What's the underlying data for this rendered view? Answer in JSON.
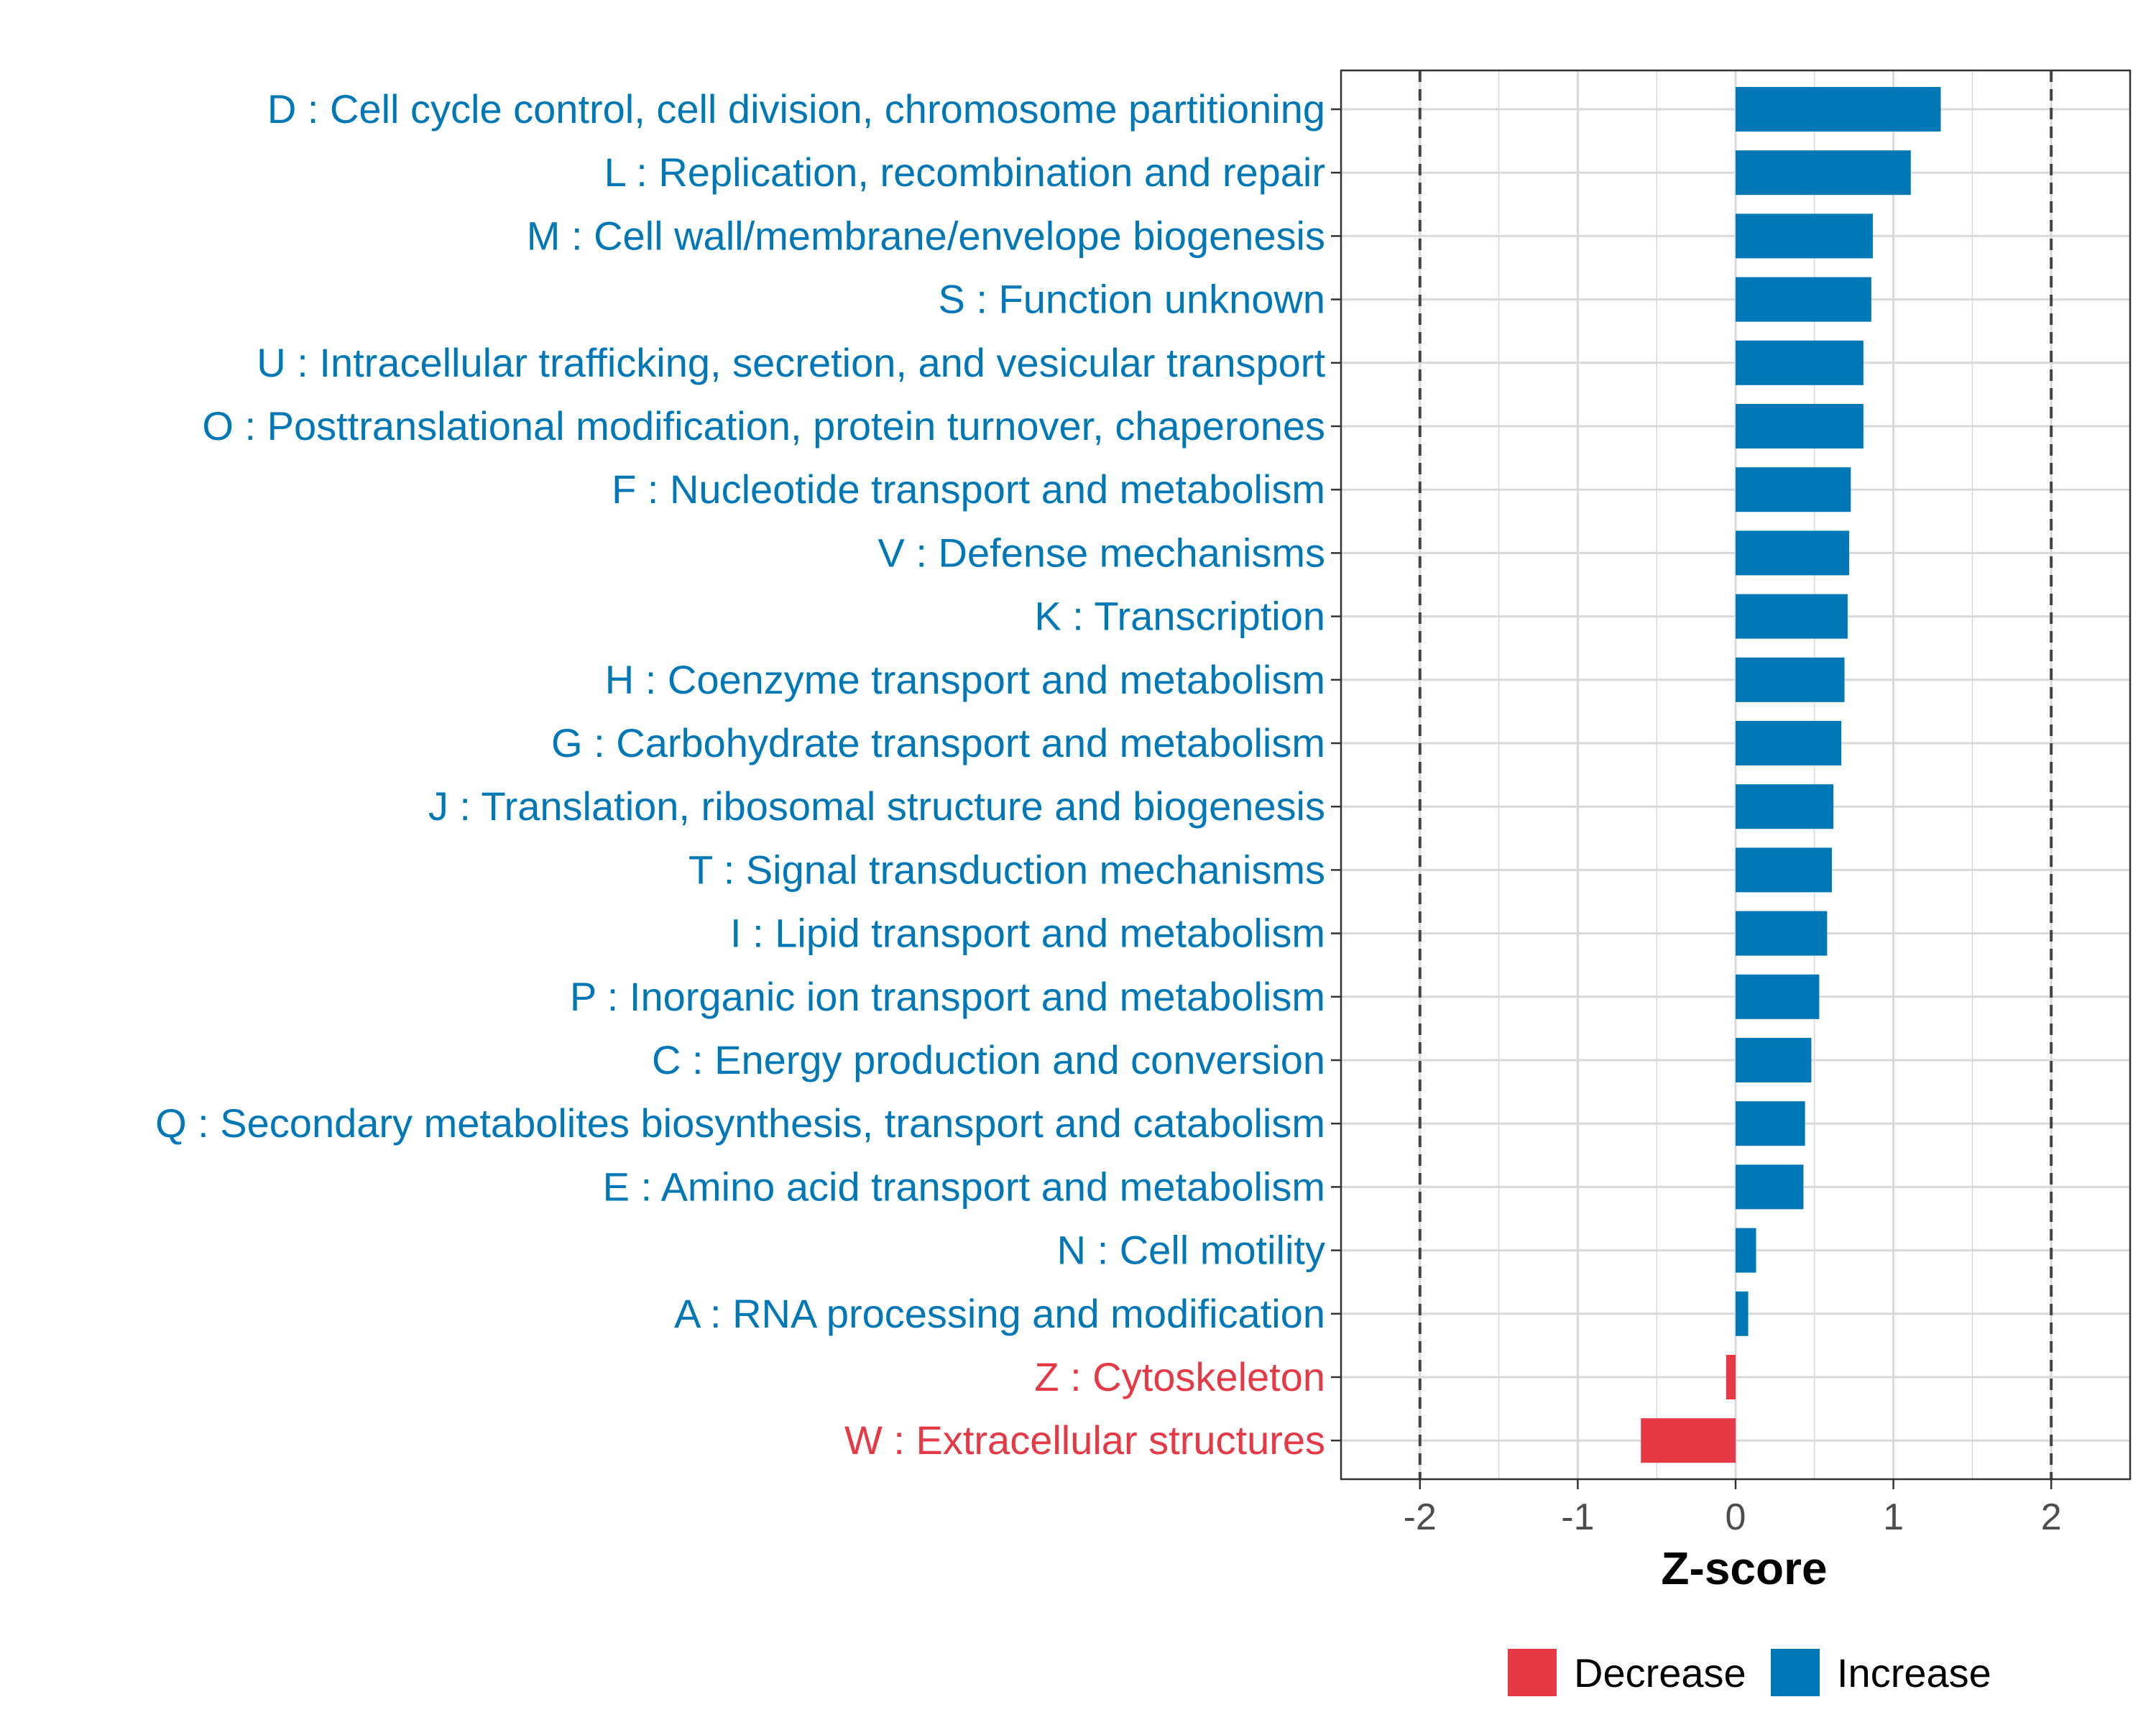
{
  "chart_data": {
    "type": "bar",
    "orientation": "horizontal",
    "xlabel": "Z-score",
    "xlim": [
      -2.5,
      2.5
    ],
    "xticks": [
      -2,
      -1,
      0,
      1,
      2
    ],
    "xtick_labels": [
      "-2",
      "-1",
      "0",
      "1",
      "2"
    ],
    "reference_lines": [
      -2,
      2
    ],
    "grid": true,
    "colors": {
      "increase": "#0077b6",
      "decrease": "#e63946",
      "reference": "#444444",
      "grid": "#d9d9d9",
      "frame": "#333333"
    },
    "categories": [
      "D : Cell cycle control, cell division, chromosome partitioning",
      "L : Replication, recombination and repair",
      "M : Cell wall/membrane/envelope biogenesis",
      "S : Function unknown",
      "U : Intracellular trafficking, secretion, and vesicular transport",
      "O : Posttranslational modification, protein turnover, chaperones",
      "F : Nucleotide transport and metabolism",
      "V : Defense mechanisms",
      "K : Transcription",
      "H : Coenzyme transport and metabolism",
      "G : Carbohydrate transport and metabolism",
      "J : Translation, ribosomal structure and biogenesis",
      "T : Signal transduction mechanisms",
      "I : Lipid transport and metabolism",
      "P : Inorganic ion transport and metabolism",
      "C : Energy production and conversion",
      "Q : Secondary metabolites biosynthesis, transport and catabolism",
      "E : Amino acid transport and metabolism",
      "N : Cell motility",
      "A : RNA processing and modification",
      "Z : Cytoskeleton",
      "W : Extracellular structures"
    ],
    "values": [
      1.3,
      1.11,
      0.87,
      0.86,
      0.81,
      0.81,
      0.73,
      0.72,
      0.71,
      0.69,
      0.67,
      0.62,
      0.61,
      0.58,
      0.53,
      0.48,
      0.44,
      0.43,
      0.13,
      0.08,
      -0.06,
      -0.6
    ],
    "groups": [
      "Increase",
      "Increase",
      "Increase",
      "Increase",
      "Increase",
      "Increase",
      "Increase",
      "Increase",
      "Increase",
      "Increase",
      "Increase",
      "Increase",
      "Increase",
      "Increase",
      "Increase",
      "Increase",
      "Increase",
      "Increase",
      "Increase",
      "Increase",
      "Decrease",
      "Decrease"
    ],
    "legend": {
      "position": "bottom",
      "items": [
        {
          "label": "Decrease",
          "color": "#e63946"
        },
        {
          "label": "Increase",
          "color": "#0077b6"
        }
      ]
    }
  }
}
